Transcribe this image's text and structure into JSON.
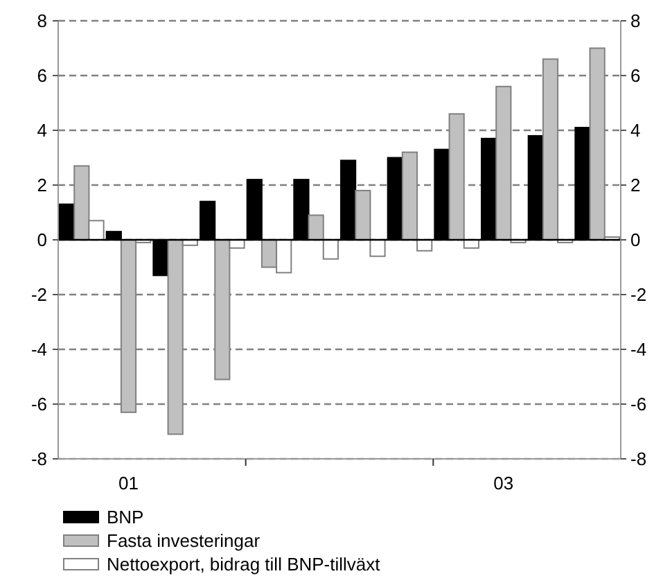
{
  "chart_data": {
    "type": "bar",
    "categories": [
      null,
      "01",
      null,
      null,
      null,
      null,
      null,
      null,
      null,
      "03",
      null,
      null
    ],
    "series": [
      {
        "name": "BNP",
        "color": "#000000",
        "values": [
          1.3,
          0.3,
          -1.3,
          1.4,
          2.2,
          2.2,
          2.9,
          3.0,
          3.3,
          3.7,
          3.8,
          4.1
        ]
      },
      {
        "name": "Fasta investeringar",
        "color": "#c0c0c0",
        "values": [
          2.7,
          -6.3,
          -7.1,
          -5.1,
          -1.0,
          0.9,
          1.8,
          3.2,
          4.6,
          5.6,
          6.6,
          7.0
        ]
      },
      {
        "name": "Nettoexport, bidrag till BNP-tillväxt",
        "color": "#ffffff",
        "values": [
          0.7,
          -0.1,
          -0.2,
          -0.3,
          -1.2,
          -0.7,
          -0.6,
          -0.4,
          -0.3,
          -0.1,
          -0.1,
          0.1
        ]
      }
    ],
    "ylim": [
      -8,
      8
    ],
    "yticks": [
      -8,
      -6,
      -4,
      -2,
      0,
      2,
      4,
      6,
      8
    ],
    "y2lim": [
      -8,
      8
    ],
    "y2ticks": [
      -8,
      -6,
      -4,
      -2,
      0,
      2,
      4,
      6,
      8
    ],
    "grid": "y",
    "legend": "bottom"
  }
}
